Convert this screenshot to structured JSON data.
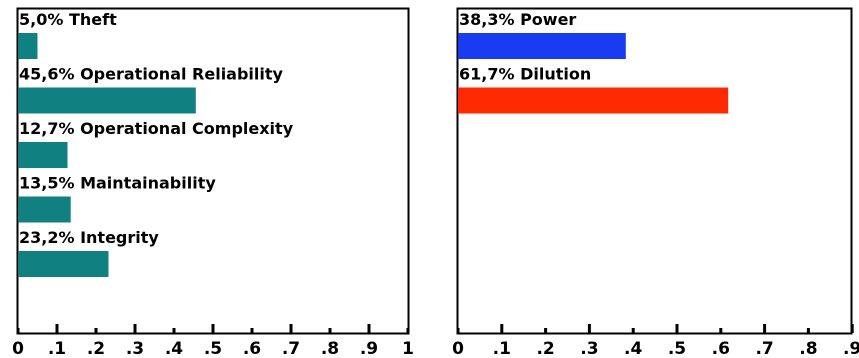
{
  "chart_data": [
    {
      "type": "bar",
      "orientation": "horizontal",
      "categories": [
        "Theft",
        "Operational Reliability",
        "Operational Complexity",
        "Maintainability",
        "Integrity"
      ],
      "labels": [
        "5,0% Theft",
        "45,6% Operational Reliability",
        "12,7% Operational Complexity",
        "13,5% Maintainability",
        "23,2% Integrity"
      ],
      "values": [
        0.05,
        0.456,
        0.127,
        0.135,
        0.232
      ],
      "color": "#108080",
      "xlim": [
        0,
        1
      ],
      "ticks": [
        0,
        0.1,
        0.2,
        0.3,
        0.4,
        0.5,
        0.6,
        0.7,
        0.8,
        0.9,
        1
      ],
      "tick_labels": [
        "0",
        ".1",
        ".2",
        ".3",
        ".4",
        ".5",
        ".6",
        ".7",
        ".8",
        ".9",
        "1"
      ],
      "grid": false
    },
    {
      "type": "bar",
      "orientation": "horizontal",
      "categories": [
        "Power",
        "Dilution"
      ],
      "labels": [
        "38,3% Power",
        "61,7% Dilution"
      ],
      "values": [
        0.383,
        0.617
      ],
      "colors": [
        "#1a3cf0",
        "#ff2a00"
      ],
      "xlim": [
        0,
        1
      ],
      "ticks": [
        0,
        0.1,
        0.2,
        0.3,
        0.4,
        0.5,
        0.6,
        0.7,
        0.8,
        0.9
      ],
      "tick_labels": [
        "0",
        ".1",
        ".2",
        ".3",
        ".4",
        ".5",
        ".6",
        ".7",
        ".8",
        ".9"
      ],
      "grid": false
    }
  ]
}
